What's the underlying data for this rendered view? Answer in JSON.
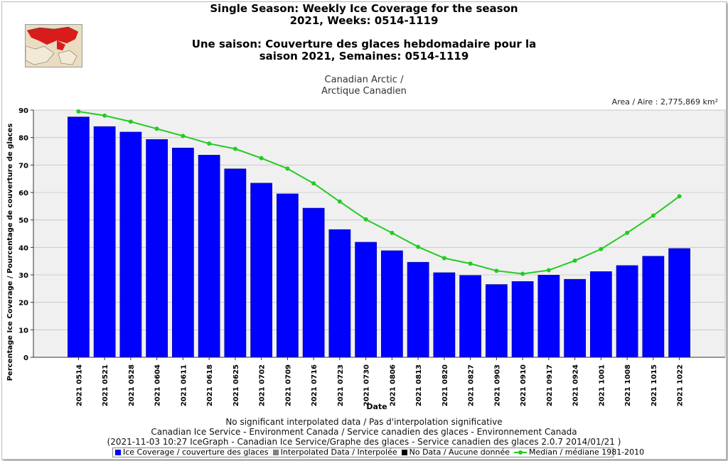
{
  "header": {
    "title_en_1": "Single Season: Weekly Ice Coverage for the season",
    "title_en_2": "2021, Weeks: 0514-1119",
    "title_fr_1": "Une saison: Couverture des glaces hebdomadaire pour la",
    "title_fr_2": "saison 2021, Semaines: 0514-1119",
    "region_1": "Canadian Arctic /",
    "region_2": "Arctique Canadien",
    "area": "Area / Aire : 2,775,869 km²"
  },
  "footer": {
    "line1": "No significant interpolated data / Pas d'interpolation significative",
    "line2": "Canadian Ice Service - Environment Canada / Service canadien des glaces - Environnement Canada",
    "line3": "(2021-11-03 10:27 IceGraph - Canadian Ice Service/Graphe des glaces - Service canadien des glaces 2.0.7 2014/01/21 )"
  },
  "legend": {
    "ice": "Ice Coverage / couverture des glaces",
    "interp": "Interpolated Data / Interpolée",
    "nodata": "No Data / Aucune donnée",
    "median": "Median / médiane 1981-2010"
  },
  "colors": {
    "bar": "#0000ff",
    "median": "#22cc22",
    "interp": "#808080",
    "nodata": "#000000",
    "plot_bg": "#f0f0f0"
  },
  "chart_data": {
    "type": "bar",
    "title": "Single Season: Weekly Ice Coverage for the season",
    "xlabel": "Date",
    "ylabel": "Percentage Ice Coverage / Pourcentage de couverture de glaces",
    "ylim": [
      0,
      90
    ],
    "yticks": [
      0,
      10,
      20,
      30,
      40,
      50,
      60,
      70,
      80,
      90
    ],
    "grid": true,
    "categories": [
      "2021 0514",
      "2021 0521",
      "2021 0528",
      "2021 0604",
      "2021 0611",
      "2021 0618",
      "2021 0625",
      "2021 0702",
      "2021 0709",
      "2021 0716",
      "2021 0723",
      "2021 0730",
      "2021 0806",
      "2021 0813",
      "2021 0820",
      "2021 0827",
      "2021 0903",
      "2021 0910",
      "2021 0917",
      "2021 0924",
      "2021 1001",
      "2021 1008",
      "2021 1015",
      "2021 1022"
    ],
    "series": [
      {
        "name": "Ice Coverage / couverture des glaces",
        "type": "bar",
        "values": [
          87.5,
          84,
          82,
          79.3,
          76.2,
          73.6,
          68.6,
          63.4,
          59.5,
          54.3,
          46.5,
          41.9,
          38.8,
          34.6,
          30.8,
          29.8,
          26.5,
          27.6,
          29.9,
          28.4,
          31.2,
          33.4,
          36.8,
          39.6
        ]
      },
      {
        "name": "Median / médiane 1981-2010",
        "type": "line",
        "values": [
          89.5,
          88,
          85.8,
          83.2,
          80.6,
          77.8,
          75.9,
          72.5,
          68.7,
          63.3,
          56.7,
          50.2,
          45.3,
          40.2,
          36.1,
          34.1,
          31.5,
          30.4,
          31.7,
          35.2,
          39.4,
          45.3,
          51.6,
          58.6
        ]
      }
    ]
  }
}
